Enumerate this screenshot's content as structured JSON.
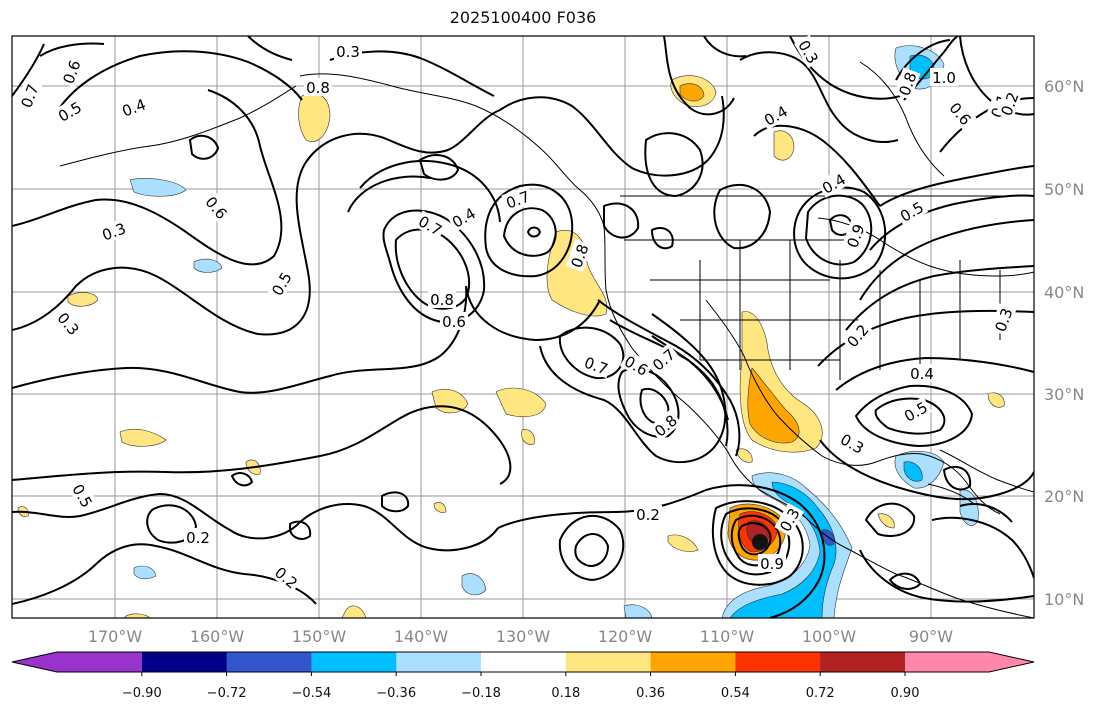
{
  "title": "2025100400 F036",
  "latitude_labels": [
    "60°N",
    "50°N",
    "40°N",
    "30°N",
    "20°N",
    "10°N"
  ],
  "longitude_labels": [
    "170°W",
    "160°W",
    "150°W",
    "140°W",
    "130°W",
    "120°W",
    "110°W",
    "100°W",
    "90°W"
  ],
  "colorbar": {
    "tick_labels": [
      "−0.90",
      "−0.72",
      "−0.54",
      "−0.36",
      "−0.18",
      "0.18",
      "0.36",
      "0.54",
      "0.72",
      "0.90"
    ],
    "colors": [
      "#9933cc",
      "#000088",
      "#3355cc",
      "#00bfff",
      "#aadfff",
      "#ffffff",
      "#ffe680",
      "#ffa500",
      "#ff3300",
      "#b22222",
      "#ff88aa"
    ]
  },
  "contour_labels": [
    "0.7",
    "0.6",
    "0.5",
    "0.4",
    "0.8",
    "0.3",
    "0.6",
    "0.5",
    "0.3",
    "0.7",
    "0.4",
    "0.7",
    "0.8",
    "0.6",
    "0.8",
    "0.7",
    "0.6",
    "0.7",
    "0.8",
    "0.4",
    "0.3",
    "0.4",
    "0.9",
    "0.5",
    "0.2",
    "0.4",
    "0.5",
    "0.3",
    "0.3",
    "0.5",
    "0.2",
    "0.2",
    "0.2",
    "0.3",
    "0.9",
    "1.0",
    "0.8",
    "0.6",
    "0.1",
    "0.2",
    "0.3"
  ],
  "colors": {
    "coast": "#000000",
    "grid": "#999999",
    "contour": "#000000"
  }
}
